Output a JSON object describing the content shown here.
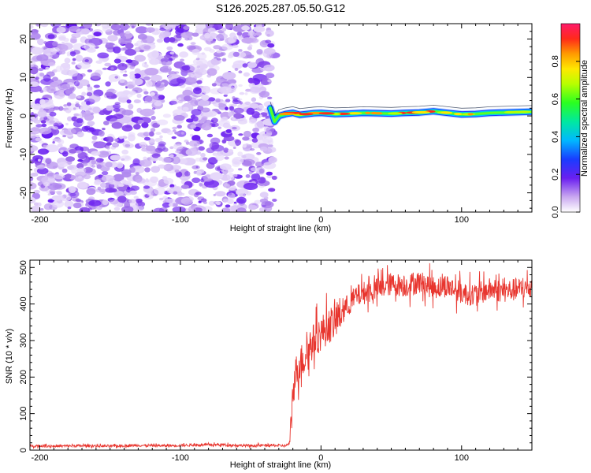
{
  "title": "S126.2025.287.05.50.G12",
  "chart_data": [
    {
      "type": "heatmap",
      "xlabel": "Height of straight line (km)",
      "ylabel": "Frequency (Hz)",
      "xlim": [
        -207,
        150
      ],
      "ylim": [
        -25,
        24
      ],
      "xticks": [
        -200,
        -100,
        0,
        100
      ],
      "yticks": [
        -20,
        -10,
        0,
        10,
        20
      ],
      "noise_region_x": [
        -207,
        -33
      ],
      "ridge": {
        "x": [
          -36,
          -33,
          -30,
          -25,
          -20,
          -15,
          -10,
          -5,
          0,
          10,
          20,
          30,
          40,
          50,
          60,
          70,
          80,
          90,
          100,
          110,
          120,
          130,
          140,
          150
        ],
        "y": [
          2.0,
          -1.5,
          0.0,
          0.5,
          0.8,
          0.3,
          0.5,
          0.7,
          0.8,
          0.5,
          0.6,
          0.8,
          0.7,
          0.6,
          0.8,
          0.9,
          1.2,
          0.8,
          0.4,
          0.5,
          0.8,
          0.9,
          1.0,
          1.1
        ]
      },
      "colorbar": {
        "label": "Normalized spectral amplitude",
        "ticks": [
          "0.0",
          "0.2",
          "0.4",
          "0.6",
          "0.8"
        ],
        "tick_values": [
          0.0,
          0.2,
          0.4,
          0.6,
          0.8
        ],
        "range": [
          0,
          1
        ]
      }
    },
    {
      "type": "line",
      "xlabel": "Height of straight line (km)",
      "ylabel": "SNR (10 * v/v)",
      "xlim": [
        -207,
        150
      ],
      "ylim": [
        0,
        520
      ],
      "xticks": [
        -200,
        -100,
        0,
        100
      ],
      "yticks": [
        0,
        100,
        200,
        300,
        400,
        500
      ],
      "color": "#e8362f",
      "series": [
        {
          "x": [
            -207,
            -190,
            -170,
            -150,
            -130,
            -110,
            -90,
            -70,
            -50,
            -40,
            -25,
            -22,
            -20,
            -18,
            -15,
            -12,
            -10,
            -5,
            0,
            5,
            10,
            15,
            20,
            25,
            30,
            40,
            50,
            60,
            70,
            80,
            90,
            100,
            110,
            120,
            130,
            140,
            150
          ],
          "y": [
            12,
            11,
            12,
            11,
            13,
            12,
            14,
            15,
            12,
            13,
            12,
            20,
            160,
            210,
            240,
            250,
            270,
            300,
            320,
            340,
            350,
            380,
            400,
            420,
            430,
            440,
            455,
            450,
            460,
            445,
            450,
            430,
            425,
            440,
            435,
            440,
            445
          ]
        }
      ]
    }
  ]
}
